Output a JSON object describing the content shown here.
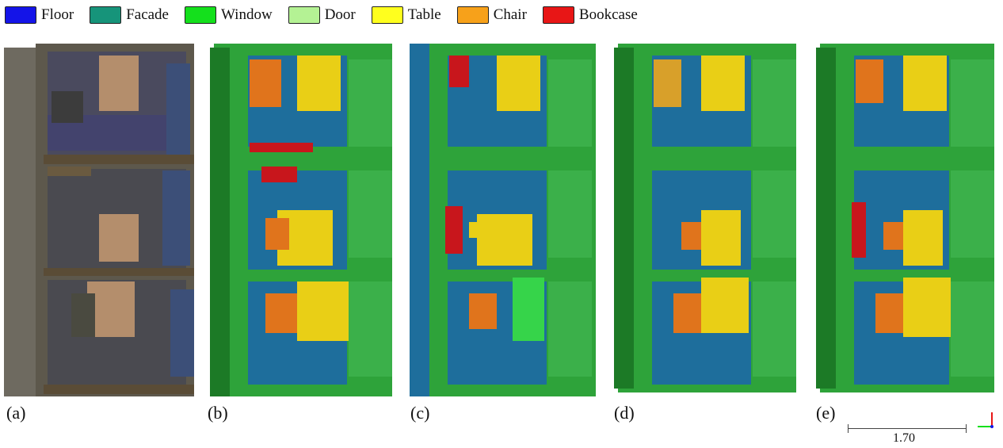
{
  "legend": {
    "items": [
      {
        "label": "Floor",
        "color": "#1414e8"
      },
      {
        "label": "Facade",
        "color": "#16947a"
      },
      {
        "label": "Window",
        "color": "#14e01c"
      },
      {
        "label": "Door",
        "color": "#b4f294"
      },
      {
        "label": "Table",
        "color": "#ffff1e"
      },
      {
        "label": "Chair",
        "color": "#f7a11a"
      },
      {
        "label": "Bookcase",
        "color": "#e81616"
      }
    ]
  },
  "panels": [
    {
      "label": "(a)",
      "style": "rgb"
    },
    {
      "label": "(b)",
      "style": "seg"
    },
    {
      "label": "(c)",
      "style": "seg"
    },
    {
      "label": "(d)",
      "style": "seg"
    },
    {
      "label": "(e)",
      "style": "seg"
    }
  ],
  "scale": {
    "value": "1.70"
  },
  "colors": {
    "floor_render": "#1e6e9c",
    "wall_render": "#2ea33a",
    "wall_dark": "#1c7a26",
    "table_render": "#e9cf16",
    "chair_render": "#e0741c",
    "bookcase_render": "#c8161c",
    "rgb_floor": "#4a4a5e",
    "rgb_wall": "#6b6250",
    "rgb_table": "#b48e6c",
    "rgb_window": "#3c4f78"
  }
}
